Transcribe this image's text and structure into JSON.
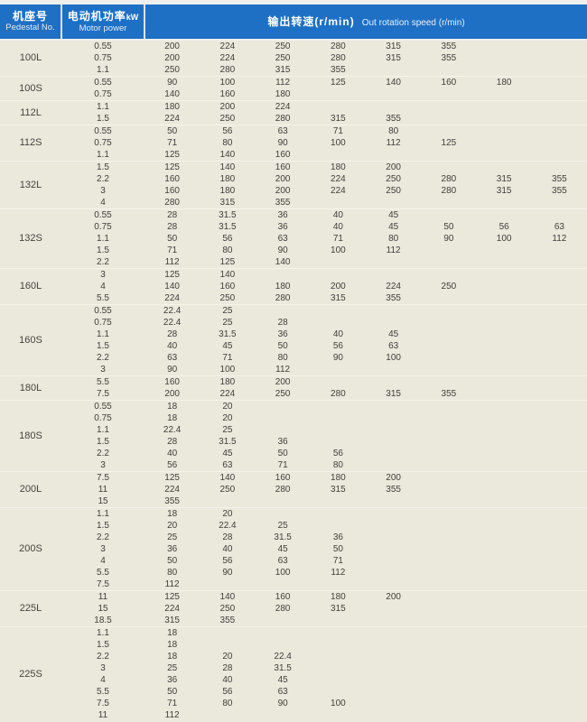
{
  "header": {
    "pedestal_zh": "机座号",
    "pedestal_en": "Pedestal No.",
    "power_zh": "电动机功率",
    "power_unit": "kW",
    "power_en": "Motor power",
    "speed_zh": "输出转速(r/min)",
    "speed_en": "Out rotation speed (r/min)"
  },
  "colors": {
    "header_bg": "#1e70c4",
    "header_text": "#ffffff",
    "body_bg": "#ebe8dc",
    "body_text": "#3f3e39",
    "group_divider": "#f6f4ea"
  },
  "table": {
    "max_speed_columns": 8,
    "groups": [
      {
        "pedestal": "100L",
        "rows": [
          {
            "power": "0.55",
            "speeds": [
              "200",
              "224",
              "250",
              "280",
              "315",
              "355"
            ]
          },
          {
            "power": "0.75",
            "speeds": [
              "200",
              "224",
              "250",
              "280",
              "315",
              "355"
            ]
          },
          {
            "power": "1.1",
            "speeds": [
              "250",
              "280",
              "315",
              "355"
            ]
          }
        ]
      },
      {
        "pedestal": "100S",
        "rows": [
          {
            "power": "0.55",
            "speeds": [
              "90",
              "100",
              "112",
              "125",
              "140",
              "160",
              "180"
            ]
          },
          {
            "power": "0.75",
            "speeds": [
              "140",
              "160",
              "180"
            ]
          }
        ]
      },
      {
        "pedestal": "112L",
        "rows": [
          {
            "power": "1.1",
            "speeds": [
              "180",
              "200",
              "224"
            ]
          },
          {
            "power": "1.5",
            "speeds": [
              "224",
              "250",
              "280",
              "315",
              "355"
            ]
          }
        ]
      },
      {
        "pedestal": "112S",
        "rows": [
          {
            "power": "0.55",
            "speeds": [
              "50",
              "56",
              "63",
              "71",
              "80"
            ]
          },
          {
            "power": "0.75",
            "speeds": [
              "71",
              "80",
              "90",
              "100",
              "112",
              "125"
            ]
          },
          {
            "power": "1.1",
            "speeds": [
              "125",
              "140",
              "160"
            ]
          }
        ]
      },
      {
        "pedestal": "132L",
        "rows": [
          {
            "power": "1.5",
            "speeds": [
              "125",
              "140",
              "160",
              "180",
              "200"
            ]
          },
          {
            "power": "2.2",
            "speeds": [
              "160",
              "180",
              "200",
              "224",
              "250",
              "280",
              "315",
              "355"
            ]
          },
          {
            "power": "3",
            "speeds": [
              "160",
              "180",
              "200",
              "224",
              "250",
              "280",
              "315",
              "355"
            ]
          },
          {
            "power": "4",
            "speeds": [
              "280",
              "315",
              "355"
            ]
          }
        ]
      },
      {
        "pedestal": "132S",
        "rows": [
          {
            "power": "0.55",
            "speeds": [
              "28",
              "31.5",
              "36",
              "40",
              "45"
            ]
          },
          {
            "power": "0.75",
            "speeds": [
              "28",
              "31.5",
              "36",
              "40",
              "45",
              "50",
              "56",
              "63"
            ]
          },
          {
            "power": "1.1",
            "speeds": [
              "50",
              "56",
              "63",
              "71",
              "80",
              "90",
              "100",
              "112"
            ]
          },
          {
            "power": "1.5",
            "speeds": [
              "71",
              "80",
              "90",
              "100",
              "112"
            ]
          },
          {
            "power": "2.2",
            "speeds": [
              "112",
              "125",
              "140"
            ]
          }
        ]
      },
      {
        "pedestal": "160L",
        "rows": [
          {
            "power": "3",
            "speeds": [
              "125",
              "140"
            ]
          },
          {
            "power": "4",
            "speeds": [
              "140",
              "160",
              "180",
              "200",
              "224",
              "250"
            ]
          },
          {
            "power": "5.5",
            "speeds": [
              "224",
              "250",
              "280",
              "315",
              "355"
            ]
          }
        ]
      },
      {
        "pedestal": "160S",
        "rows": [
          {
            "power": "0.55",
            "speeds": [
              "22.4",
              "25"
            ]
          },
          {
            "power": "0.75",
            "speeds": [
              "22.4",
              "25",
              "28"
            ]
          },
          {
            "power": "1.1",
            "speeds": [
              "28",
              "31.5",
              "36",
              "40",
              "45"
            ]
          },
          {
            "power": "1.5",
            "speeds": [
              "40",
              "45",
              "50",
              "56",
              "63"
            ]
          },
          {
            "power": "2.2",
            "speeds": [
              "63",
              "71",
              "80",
              "90",
              "100"
            ]
          },
          {
            "power": "3",
            "speeds": [
              "90",
              "100",
              "112"
            ]
          }
        ]
      },
      {
        "pedestal": "180L",
        "rows": [
          {
            "power": "5.5",
            "speeds": [
              "160",
              "180",
              "200"
            ]
          },
          {
            "power": "7.5",
            "speeds": [
              "200",
              "224",
              "250",
              "280",
              "315",
              "355"
            ]
          }
        ]
      },
      {
        "pedestal": "180S",
        "rows": [
          {
            "power": "0.55",
            "speeds": [
              "18",
              "20"
            ]
          },
          {
            "power": "0.75",
            "speeds": [
              "18",
              "20"
            ]
          },
          {
            "power": "1.1",
            "speeds": [
              "22.4",
              "25"
            ]
          },
          {
            "power": "1.5",
            "speeds": [
              "28",
              "31.5",
              "36"
            ]
          },
          {
            "power": "2.2",
            "speeds": [
              "40",
              "45",
              "50",
              "56"
            ]
          },
          {
            "power": "3",
            "speeds": [
              "56",
              "63",
              "71",
              "80"
            ]
          }
        ]
      },
      {
        "pedestal": "200L",
        "rows": [
          {
            "power": "7.5",
            "speeds": [
              "125",
              "140",
              "160",
              "180",
              "200"
            ]
          },
          {
            "power": "11",
            "speeds": [
              "224",
              "250",
              "280",
              "315",
              "355"
            ]
          },
          {
            "power": "15",
            "speeds": [
              "355"
            ]
          }
        ]
      },
      {
        "pedestal": "200S",
        "rows": [
          {
            "power": "1.1",
            "speeds": [
              "18",
              "20"
            ]
          },
          {
            "power": "1.5",
            "speeds": [
              "20",
              "22.4",
              "25"
            ]
          },
          {
            "power": "2.2",
            "speeds": [
              "25",
              "28",
              "31.5",
              "36"
            ]
          },
          {
            "power": "3",
            "speeds": [
              "36",
              "40",
              "45",
              "50"
            ]
          },
          {
            "power": "4",
            "speeds": [
              "50",
              "56",
              "63",
              "71"
            ]
          },
          {
            "power": "5.5",
            "speeds": [
              "80",
              "90",
              "100",
              "112"
            ]
          },
          {
            "power": "7.5",
            "speeds": [
              "112"
            ]
          }
        ]
      },
      {
        "pedestal": "225L",
        "rows": [
          {
            "power": "11",
            "speeds": [
              "125",
              "140",
              "160",
              "180",
              "200"
            ]
          },
          {
            "power": "15",
            "speeds": [
              "224",
              "250",
              "280",
              "315"
            ]
          },
          {
            "power": "18.5",
            "speeds": [
              "315",
              "355"
            ]
          }
        ]
      },
      {
        "pedestal": "225S",
        "rows": [
          {
            "power": "1.1",
            "speeds": [
              "18"
            ]
          },
          {
            "power": "1.5",
            "speeds": [
              "18"
            ]
          },
          {
            "power": "2.2",
            "speeds": [
              "18",
              "20",
              "22.4"
            ]
          },
          {
            "power": "3",
            "speeds": [
              "25",
              "28",
              "31.5"
            ]
          },
          {
            "power": "4",
            "speeds": [
              "36",
              "40",
              "45"
            ]
          },
          {
            "power": "5.5",
            "speeds": [
              "50",
              "56",
              "63"
            ]
          },
          {
            "power": "7.5",
            "speeds": [
              "71",
              "80",
              "90",
              "100"
            ]
          },
          {
            "power": "11",
            "speeds": [
              "112"
            ]
          }
        ]
      }
    ]
  }
}
